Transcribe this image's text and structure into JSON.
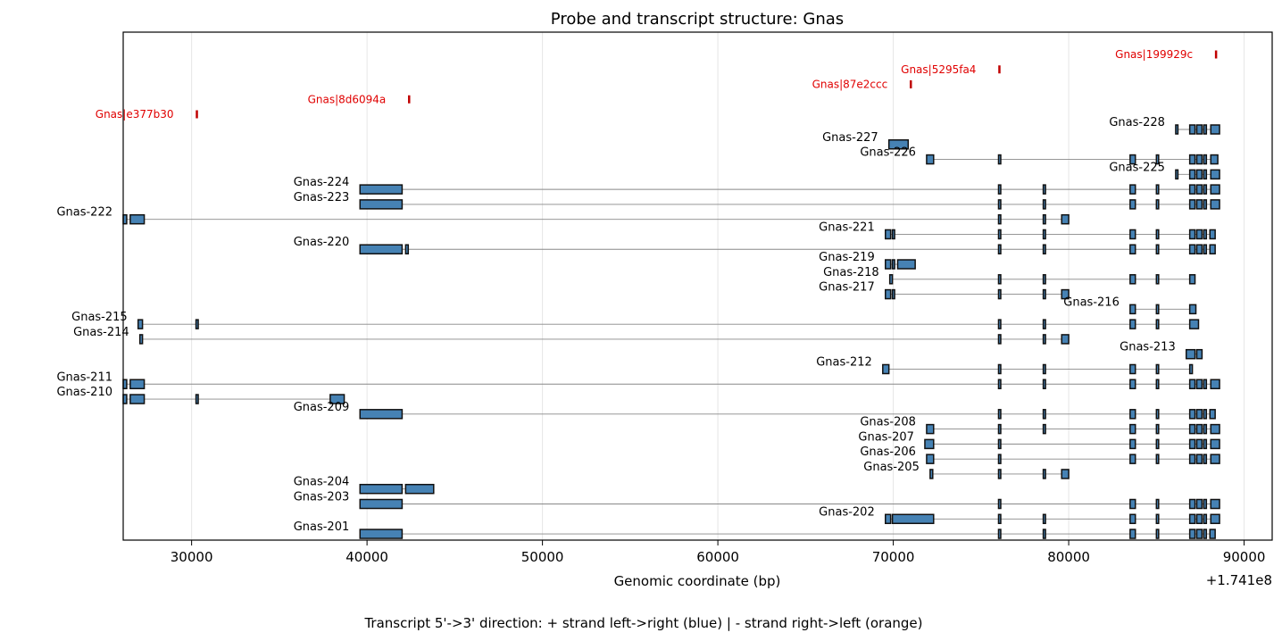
{
  "chart_data": {
    "type": "gene-structure",
    "title": "Probe and transcript structure: Gnas",
    "xlabel": "Genomic coordinate (bp)",
    "offset_label": "+1.741e8",
    "caption": "Transcript 5'->3' direction: + strand left->right (blue) | - strand right->left (orange)",
    "xlim": [
      26100,
      91600
    ],
    "xticks": [
      30000,
      40000,
      50000,
      60000,
      70000,
      80000,
      90000
    ],
    "xtick_labels": [
      "30000",
      "40000",
      "50000",
      "60000",
      "70000",
      "80000",
      "90000"
    ],
    "grid": "vertical",
    "colors": {
      "exon_fill": "#4682b4",
      "exon_edge": "#111111",
      "intron": "#888888",
      "probe": "#c00000",
      "probe_text": "#e00000",
      "grid": "#e6e6e6"
    },
    "probes": [
      {
        "name": "Gnas|199929c",
        "pos": 88400
      },
      {
        "name": "Gnas|5295fa4",
        "pos": 76050
      },
      {
        "name": "Gnas|87e2ccc",
        "pos": 71000
      },
      {
        "name": "Gnas|8d6094a",
        "pos": 42400
      },
      {
        "name": "Gnas|e377b30",
        "pos": 30300
      }
    ],
    "transcripts": [
      {
        "name": "Gnas-228",
        "exons": [
          [
            86100,
            86200
          ],
          [
            86900,
            87200
          ],
          [
            87300,
            87600
          ],
          [
            87700,
            87850
          ],
          [
            88100,
            88600
          ]
        ]
      },
      {
        "name": "Gnas-227",
        "exons": [
          [
            69750,
            70850
          ]
        ]
      },
      {
        "name": "Gnas-226",
        "exons": [
          [
            71900,
            72300
          ],
          [
            76000,
            76100
          ],
          [
            83500,
            83800
          ],
          [
            85000,
            85100
          ],
          [
            86900,
            87200
          ],
          [
            87300,
            87600
          ],
          [
            87700,
            87850
          ],
          [
            88100,
            88500
          ]
        ]
      },
      {
        "name": "Gnas-225",
        "exons": [
          [
            86100,
            86200
          ],
          [
            86900,
            87200
          ],
          [
            87300,
            87600
          ],
          [
            87700,
            87850
          ],
          [
            88100,
            88600
          ]
        ]
      },
      {
        "name": "Gnas-224",
        "exons": [
          [
            39600,
            42000
          ],
          [
            76000,
            76100
          ],
          [
            78550,
            78650
          ],
          [
            83500,
            83800
          ],
          [
            85000,
            85100
          ],
          [
            86900,
            87200
          ],
          [
            87300,
            87600
          ],
          [
            87700,
            87850
          ],
          [
            88100,
            88600
          ]
        ]
      },
      {
        "name": "Gnas-223",
        "exons": [
          [
            39600,
            42000
          ],
          [
            76000,
            76100
          ],
          [
            78550,
            78650
          ],
          [
            83500,
            83800
          ],
          [
            85000,
            85100
          ],
          [
            86900,
            87200
          ],
          [
            87300,
            87600
          ],
          [
            87700,
            87850
          ],
          [
            88100,
            88600
          ]
        ]
      },
      {
        "name": "Gnas-222",
        "exons": [
          [
            26100,
            26300
          ],
          [
            26500,
            27300
          ],
          [
            76000,
            76100
          ],
          [
            78550,
            78650
          ],
          [
            79600,
            80000
          ]
        ]
      },
      {
        "name": "Gnas-221",
        "exons": [
          [
            69550,
            69850
          ],
          [
            69950,
            70050
          ],
          [
            76000,
            76100
          ],
          [
            78550,
            78650
          ],
          [
            83500,
            83800
          ],
          [
            85000,
            85100
          ],
          [
            86900,
            87200
          ],
          [
            87300,
            87600
          ],
          [
            87700,
            87850
          ],
          [
            88050,
            88350
          ]
        ]
      },
      {
        "name": "Gnas-220",
        "exons": [
          [
            39600,
            42000
          ],
          [
            42200,
            42350
          ],
          [
            76000,
            76100
          ],
          [
            78550,
            78650
          ],
          [
            83500,
            83800
          ],
          [
            85000,
            85100
          ],
          [
            86900,
            87200
          ],
          [
            87300,
            87600
          ],
          [
            87700,
            87850
          ],
          [
            88050,
            88350
          ]
        ]
      },
      {
        "name": "Gnas-219",
        "exons": [
          [
            69550,
            69850
          ],
          [
            69950,
            70050
          ],
          [
            70250,
            71250
          ]
        ]
      },
      {
        "name": "Gnas-218",
        "exons": [
          [
            69800,
            69950
          ],
          [
            76000,
            76100
          ],
          [
            78550,
            78650
          ],
          [
            83500,
            83800
          ],
          [
            85000,
            85100
          ],
          [
            86900,
            87200
          ]
        ]
      },
      {
        "name": "Gnas-217",
        "exons": [
          [
            69550,
            69850
          ],
          [
            69950,
            70050
          ],
          [
            76000,
            76100
          ],
          [
            78550,
            78650
          ],
          [
            79600,
            80000
          ]
        ]
      },
      {
        "name": "Gnas-216",
        "exons": [
          [
            83500,
            83800
          ],
          [
            85000,
            85100
          ],
          [
            86900,
            87250
          ]
        ]
      },
      {
        "name": "Gnas-215",
        "exons": [
          [
            26950,
            27200
          ],
          [
            30250,
            30350
          ],
          [
            76000,
            76100
          ],
          [
            78550,
            78650
          ],
          [
            83500,
            83800
          ],
          [
            85000,
            85100
          ],
          [
            86900,
            87400
          ]
        ]
      },
      {
        "name": "Gnas-214",
        "exons": [
          [
            27050,
            27200
          ],
          [
            76000,
            76100
          ],
          [
            78550,
            78650
          ],
          [
            79600,
            80000
          ]
        ]
      },
      {
        "name": "Gnas-213",
        "exons": [
          [
            86700,
            87200
          ],
          [
            87300,
            87600
          ]
        ]
      },
      {
        "name": "Gnas-212",
        "exons": [
          [
            69400,
            69750
          ],
          [
            76000,
            76100
          ],
          [
            78550,
            78650
          ],
          [
            83500,
            83800
          ],
          [
            85000,
            85100
          ],
          [
            86900,
            87050
          ]
        ]
      },
      {
        "name": "Gnas-211",
        "exons": [
          [
            26100,
            26300
          ],
          [
            26500,
            27300
          ],
          [
            76000,
            76100
          ],
          [
            78550,
            78650
          ],
          [
            83500,
            83800
          ],
          [
            85000,
            85100
          ],
          [
            86900,
            87200
          ],
          [
            87300,
            87600
          ],
          [
            87700,
            87850
          ],
          [
            88100,
            88600
          ]
        ]
      },
      {
        "name": "Gnas-210",
        "exons": [
          [
            26100,
            26300
          ],
          [
            26500,
            27300
          ],
          [
            30250,
            30350
          ],
          [
            37900,
            38700
          ]
        ]
      },
      {
        "name": "Gnas-209",
        "exons": [
          [
            39600,
            42000
          ],
          [
            76000,
            76100
          ],
          [
            78550,
            78650
          ],
          [
            83500,
            83800
          ],
          [
            85000,
            85100
          ],
          [
            86900,
            87200
          ],
          [
            87300,
            87600
          ],
          [
            87700,
            87850
          ],
          [
            88050,
            88350
          ]
        ]
      },
      {
        "name": "Gnas-208",
        "exons": [
          [
            71900,
            72300
          ],
          [
            76000,
            76100
          ],
          [
            78550,
            78650
          ],
          [
            83500,
            83800
          ],
          [
            85000,
            85100
          ],
          [
            86900,
            87200
          ],
          [
            87300,
            87600
          ],
          [
            87700,
            87850
          ],
          [
            88100,
            88600
          ]
        ]
      },
      {
        "name": "Gnas-207",
        "exons": [
          [
            71800,
            72300
          ],
          [
            76000,
            76100
          ],
          [
            83500,
            83800
          ],
          [
            85000,
            85100
          ],
          [
            86900,
            87200
          ],
          [
            87300,
            87600
          ],
          [
            87700,
            87850
          ],
          [
            88100,
            88600
          ]
        ]
      },
      {
        "name": "Gnas-206",
        "exons": [
          [
            71900,
            72300
          ],
          [
            76000,
            76100
          ],
          [
            83500,
            83800
          ],
          [
            85000,
            85100
          ],
          [
            86900,
            87200
          ],
          [
            87300,
            87600
          ],
          [
            87700,
            87850
          ],
          [
            88100,
            88600
          ]
        ]
      },
      {
        "name": "Gnas-205",
        "exons": [
          [
            72100,
            72250
          ],
          [
            76000,
            76100
          ],
          [
            78550,
            78650
          ],
          [
            79600,
            80000
          ]
        ]
      },
      {
        "name": "Gnas-204",
        "exons": [
          [
            39600,
            42000
          ],
          [
            42200,
            43800
          ]
        ]
      },
      {
        "name": "Gnas-203",
        "exons": [
          [
            39600,
            42000
          ],
          [
            76000,
            76100
          ],
          [
            83500,
            83800
          ],
          [
            85000,
            85100
          ],
          [
            86900,
            87200
          ],
          [
            87300,
            87600
          ],
          [
            87700,
            87850
          ],
          [
            88100,
            88600
          ]
        ]
      },
      {
        "name": "Gnas-202",
        "exons": [
          [
            69550,
            69850
          ],
          [
            69950,
            72300
          ],
          [
            76000,
            76100
          ],
          [
            78550,
            78650
          ],
          [
            83500,
            83800
          ],
          [
            85000,
            85100
          ],
          [
            86900,
            87200
          ],
          [
            87300,
            87600
          ],
          [
            87700,
            87850
          ],
          [
            88100,
            88600
          ]
        ]
      },
      {
        "name": "Gnas-201",
        "exons": [
          [
            39600,
            42000
          ],
          [
            76000,
            76100
          ],
          [
            78550,
            78650
          ],
          [
            83500,
            83800
          ],
          [
            85000,
            85100
          ],
          [
            86900,
            87200
          ],
          [
            87300,
            87600
          ],
          [
            87700,
            87850
          ],
          [
            88050,
            88350
          ]
        ]
      }
    ]
  }
}
